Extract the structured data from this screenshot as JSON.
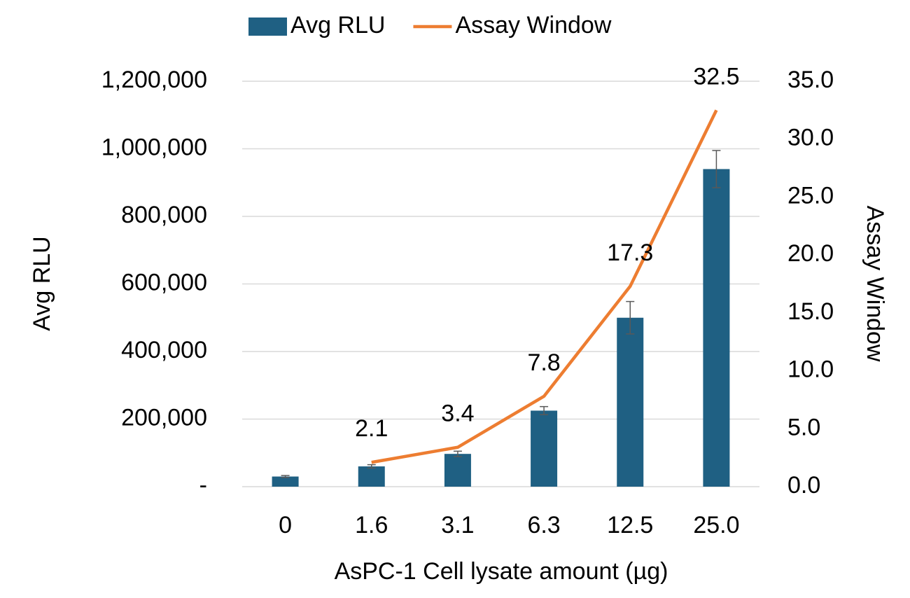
{
  "chart_data": {
    "type": "bar",
    "categories": [
      "0",
      "1.6",
      "3.1",
      "6.3",
      "12.5",
      "25.0"
    ],
    "series": [
      {
        "name": "Avg RLU",
        "type": "bar",
        "color": "#1f6083",
        "values": [
          30000,
          60000,
          97000,
          225000,
          500000,
          940000
        ],
        "errors": [
          3000,
          5000,
          8000,
          12000,
          48000,
          55000
        ]
      },
      {
        "name": "Assay Window",
        "type": "line",
        "axis": "y2",
        "color": "#ed7d31",
        "values": [
          null,
          2.1,
          3.4,
          7.8,
          17.3,
          32.5
        ]
      }
    ],
    "ylabel": "Avg RLU",
    "y2label": "Assay Window",
    "xlabel": "AsPC-1 Cell lysate amount (µg)",
    "ylim": [
      0,
      1200000
    ],
    "yticks": [
      {
        "value": 0,
        "label": "-"
      },
      {
        "value": 200000,
        "label": "200,000"
      },
      {
        "value": 400000,
        "label": "400,000"
      },
      {
        "value": 600000,
        "label": "600,000"
      },
      {
        "value": 800000,
        "label": "800,000"
      },
      {
        "value": 1000000,
        "label": "1,000,000"
      },
      {
        "value": 1200000,
        "label": "1,200,000"
      }
    ],
    "y2lim": [
      0,
      35
    ],
    "y2ticks": [
      {
        "value": 0,
        "label": "0.0"
      },
      {
        "value": 5,
        "label": "5.0"
      },
      {
        "value": 10,
        "label": "10.0"
      },
      {
        "value": 15,
        "label": "15.0"
      },
      {
        "value": 20,
        "label": "20.0"
      },
      {
        "value": 25,
        "label": "25.0"
      },
      {
        "value": 30,
        "label": "30.0"
      },
      {
        "value": 35,
        "label": "35.0"
      }
    ],
    "grid": true,
    "legend": "top"
  }
}
